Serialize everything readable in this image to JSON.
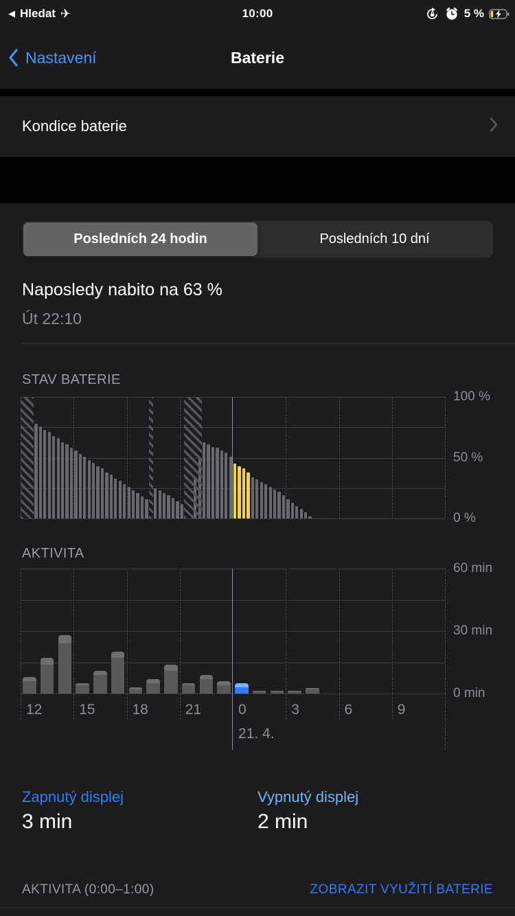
{
  "status_bar": {
    "back_triangle": "◀",
    "back_app": "Hledat",
    "airplane": "✈",
    "time": "10:00",
    "battery_percent": "5 %"
  },
  "nav": {
    "back_label": "Nastavení",
    "title": "Baterie"
  },
  "rows": {
    "battery_health_label": "Kondice baterie"
  },
  "segmented": {
    "options": [
      "Posledních 24 hodin",
      "Posledních 10 dní"
    ],
    "selected": "Posledních 24 hodin"
  },
  "last_charge": {
    "title": "Naposledy nabito na 63 %",
    "subtitle": "Út 22:10"
  },
  "stats": {
    "screen_on_label": "Zapnutý displej",
    "screen_on_value": "3 min",
    "screen_off_label": "Vypnutý displej",
    "screen_off_value": "2 min"
  },
  "footer": {
    "activity_label": "AKTIVITA (0:00–1:00)",
    "link": "ZOBRAZIT VYUŽITÍ BATERIE"
  },
  "colors": {
    "accent_blue": "#2e7cf6",
    "light_blue": "#6fb4f8",
    "back_blue": "#4296fb",
    "bar_gray": "#69696d",
    "bar_yellow": "#f7d148",
    "activity_on": "#58585b",
    "activity_off": "#6e6e71",
    "selected_on": "#2e7cf6",
    "selected_off": "#72b7f8",
    "grid_h": "#3a3a3d",
    "grid_v": "#47474b",
    "grid_mid": "#8f8f96",
    "axis_text": "#8e8e93",
    "status_battery_fill": "#f8d348"
  },
  "chart_data": [
    {
      "type": "bar",
      "title": "STAV BATERIE",
      "ylabels": [
        "100 %",
        "50 %",
        "0 %"
      ],
      "ylim": [
        0,
        100
      ],
      "slot_minutes": 15,
      "slots": 96,
      "x_start_hour": 12,
      "values": [
        0,
        0,
        0,
        78,
        76,
        73,
        71,
        68,
        66,
        63,
        61,
        58,
        56,
        53,
        51,
        48,
        46,
        43,
        41,
        38,
        36,
        33,
        31,
        28,
        26,
        23,
        21,
        18,
        16,
        0,
        25,
        23,
        21,
        19,
        17,
        14,
        12,
        0,
        0,
        34,
        50,
        63,
        61,
        59,
        58,
        56,
        54,
        51,
        45,
        43,
        41,
        38,
        34,
        32,
        30,
        28,
        26,
        24,
        22,
        19,
        16,
        13,
        10,
        8,
        5,
        2,
        0,
        0,
        0,
        0,
        0,
        0,
        0,
        0,
        0,
        0,
        0,
        0,
        0,
        0,
        0,
        0,
        0,
        0,
        0,
        0,
        0,
        0,
        0,
        0,
        0,
        0,
        0,
        0,
        0,
        0
      ],
      "charging_slots": [
        [
          0,
          3
        ],
        [
          29,
          30
        ],
        [
          37,
          41
        ]
      ],
      "lowpower_slots": [
        48,
        52
      ],
      "xticks": [
        "12",
        "15",
        "18",
        "21",
        "0",
        "3",
        "6",
        "9"
      ],
      "date_label": "21. 4."
    },
    {
      "type": "stacked-bar",
      "title": "AKTIVITA",
      "ylabels": [
        "60 min",
        "30 min",
        "0 min"
      ],
      "ylim": [
        0,
        60
      ],
      "hours": [
        "12",
        "13",
        "14",
        "15",
        "16",
        "17",
        "18",
        "19",
        "20",
        "21",
        "22",
        "23",
        "0",
        "1",
        "2",
        "3",
        "4",
        "5",
        "6",
        "7",
        "8",
        "9",
        "10",
        "11"
      ],
      "series": [
        {
          "name": "screen_on",
          "values": [
            6,
            14,
            24,
            4,
            9,
            17,
            2,
            5,
            11,
            4,
            7,
            4,
            3,
            1,
            1,
            1,
            2,
            0,
            0,
            0,
            0,
            0,
            0,
            0
          ]
        },
        {
          "name": "screen_off",
          "values": [
            2,
            3,
            4,
            1,
            2,
            3,
            1,
            2,
            3,
            1,
            2,
            2,
            2,
            0.5,
            0.3,
            0.3,
            0.5,
            0,
            0,
            0,
            0,
            0,
            0,
            0
          ]
        }
      ],
      "selected_index": 12,
      "xticks": [
        "12",
        "15",
        "18",
        "21",
        "0",
        "3",
        "6",
        "9"
      ],
      "date_label": "21. 4."
    }
  ]
}
